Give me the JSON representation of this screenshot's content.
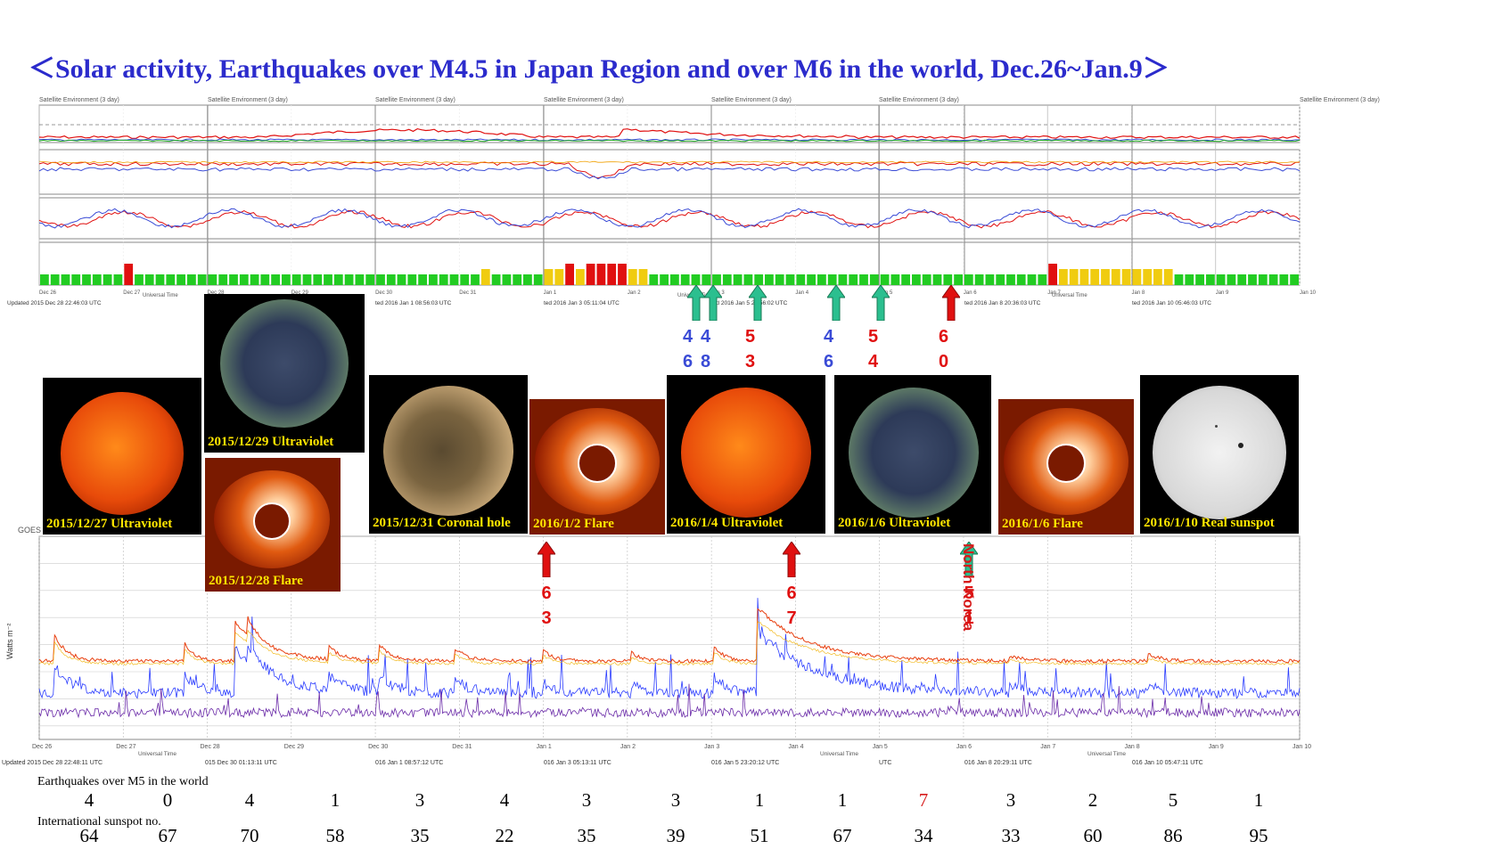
{
  "title": "＜Solar activity, Earthquakes over M4.5 in Japan Region and over M6 in the world, Dec.26~Jan.9＞",
  "colors": {
    "title": "#2b2bcc",
    "caption": "#ffe600",
    "red": "#e01010",
    "green": "#2bbf8f",
    "blue": "#3a4bd6",
    "kp_green": "#22cc22",
    "kp_yellow": "#f0cc10",
    "kp_red": "#e01010"
  },
  "chart_data": [
    {
      "type": "bar",
      "kp_index": [
        1,
        1,
        1,
        1,
        1,
        1,
        1,
        1,
        3,
        1,
        1,
        1,
        1,
        1,
        1,
        1,
        1,
        1,
        1,
        1,
        1,
        1,
        1,
        1,
        1,
        1,
        1,
        1,
        1,
        1,
        1,
        1,
        1,
        1,
        1,
        1,
        1,
        1,
        1,
        1,
        1,
        1,
        2,
        1,
        1,
        1,
        1,
        1,
        2,
        2,
        3,
        2,
        3,
        3,
        3,
        3,
        2,
        2,
        1,
        1,
        1,
        1,
        1,
        1,
        1,
        1,
        1,
        1,
        1,
        1,
        1,
        1,
        1,
        1,
        1,
        1,
        1,
        1,
        1,
        1,
        1,
        1,
        1,
        1,
        1,
        1,
        1,
        1,
        1,
        1,
        1,
        1,
        1,
        1,
        1,
        1,
        3,
        2,
        2,
        2,
        2,
        2,
        2,
        2,
        2,
        2,
        2,
        2,
        1,
        1,
        1,
        1,
        1,
        1,
        1,
        1,
        1,
        1,
        1,
        1
      ]
    },
    {
      "type": "line",
      "title": "GOES",
      "ylabel": "Watts m⁻²",
      "days": [
        "Dec 26",
        "Dec 27",
        "Dec 28",
        "Dec 29",
        "Dec 30",
        "Dec 31",
        "Jan 1",
        "Jan 2",
        "Jan 3",
        "Jan 4",
        "Jan 5",
        "Jan 6",
        "Jan 7",
        "Jan 8",
        "Jan 9",
        "Jan 10"
      ]
    }
  ],
  "top_panel": {
    "header": "Satellite Environment (3 day)",
    "axis_days": [
      "Dec 26",
      "Dec 27",
      "Dec 28",
      "Dec 29",
      "Dec 30",
      "Dec 31",
      "Jan 1",
      "Jan 2",
      "Jan 3",
      "Jan 4",
      "Jan 5",
      "Jan 6",
      "Jan 7",
      "Jan 8",
      "Jan 9",
      "Jan 10"
    ],
    "universal_time": "Universal Time",
    "updated": [
      "Updated 2015 Dec 28 22:46:03 UTC",
      "ted 2016 Jan  1 08:56:03 UTC",
      "ted 2016 Jan  3 05:11:04 UTC",
      "ted 2016 Jan  5 23:56:02 UTC",
      "ted 2016 Jan  8 20:36:03 UTC",
      "ted 2016 Jan 10 05:46:03 UTC"
    ]
  },
  "bottom_panel": {
    "updated": [
      "Updated 2015 Dec 28 22:48:11 UTC",
      "015 Dec 30 01:13:11 UTC",
      "016 Jan  1 08:57:12 UTC",
      "016 Jan  3 05:13:11 UTC",
      "016 Jan  5 23:20:12 UTC",
      "UTC",
      "016 Jan  8 20:29:11 UTC",
      "016 Jan 10 05:47:11 UTC"
    ]
  },
  "images": [
    {
      "caption": "2015/12/27 Ultraviolet"
    },
    {
      "caption": "2015/12/29 Ultraviolet"
    },
    {
      "caption": "2015/12/28 Flare"
    },
    {
      "caption": "2015/12/31 Coronal hole"
    },
    {
      "caption": "2016/1/2 Flare"
    },
    {
      "caption": "2016/1/4 Ultraviolet"
    },
    {
      "caption": "2016/1/6 Ultraviolet"
    },
    {
      "caption": "2016/1/6 Flare"
    },
    {
      "caption": "2016/1/10 Real sunspot"
    }
  ],
  "japan_quakes": [
    {
      "mag": "4.6"
    },
    {
      "mag": "4.8"
    },
    {
      "mag": "5.3"
    },
    {
      "mag": "4.6"
    },
    {
      "mag": "5.4"
    },
    {
      "mag": "6.0"
    }
  ],
  "world_quakes": [
    {
      "mag": "6.3"
    },
    {
      "mag": "6.7"
    },
    {
      "mag": "5.1"
    }
  ],
  "north_korea_label": "North Korea",
  "earthquakes_label": "Earthquakes over M5 in the world",
  "earthquake_counts": [
    "4",
    "0",
    "4",
    "1",
    "3",
    "4",
    "3",
    "3",
    "1",
    "1",
    "7",
    "3",
    "2",
    "5",
    "1"
  ],
  "sunspot_label": "International sunspot no.",
  "sunspot_numbers": [
    "64",
    "67",
    "70",
    "58",
    "35",
    "22",
    "35",
    "39",
    "51",
    "67",
    "34",
    "33",
    "60",
    "86",
    "95"
  ]
}
